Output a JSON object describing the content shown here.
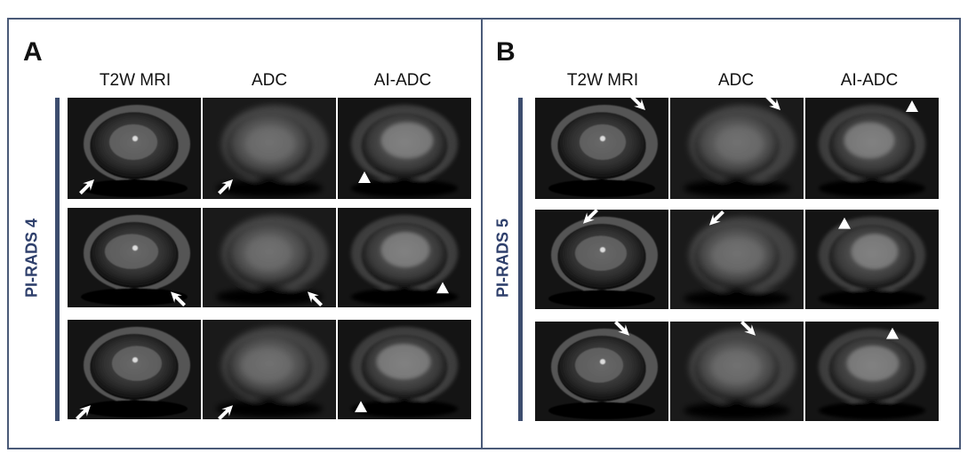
{
  "panels": [
    {
      "letter": "A",
      "row_label": "PI-RADS 4",
      "columns": [
        "T2W MRI",
        "ADC",
        "AI-ADC"
      ]
    },
    {
      "letter": "B",
      "row_label": "PI-RADS 5",
      "columns": [
        "T2W MRI",
        "ADC",
        "AI-ADC"
      ]
    }
  ],
  "marker_types": [
    "arrow-icon",
    "arrowhead-icon"
  ]
}
